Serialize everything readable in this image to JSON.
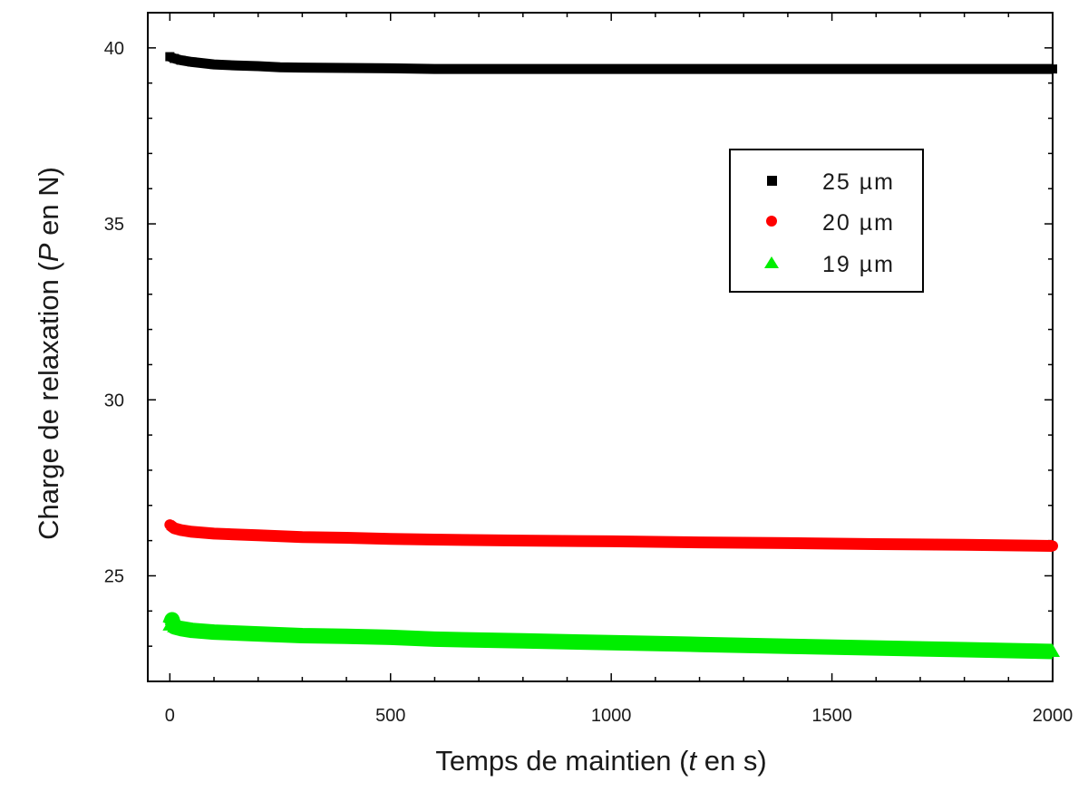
{
  "chart_data": {
    "type": "scatter",
    "xlabel": {
      "prefix": "Temps de maintien (",
      "var": "t",
      "suffix": " en s)"
    },
    "ylabel": {
      "prefix": "Charge de relaxation (",
      "var": "P",
      "suffix": " en N)"
    },
    "xlim": [
      -50,
      2000
    ],
    "ylim": [
      22,
      41
    ],
    "x_ticks": [
      0,
      500,
      1000,
      1500,
      2000
    ],
    "y_ticks": [
      25,
      30,
      35,
      40
    ],
    "legend_position": "upper-right",
    "grid": false,
    "series": [
      {
        "name": "25 µm",
        "color": "#000000",
        "marker": "square",
        "x": [
          0,
          10,
          25,
          50,
          100,
          150,
          200,
          250,
          300,
          400,
          500,
          600,
          800,
          1000,
          1200,
          1400,
          1600,
          1800,
          2000
        ],
        "y": [
          39.75,
          39.7,
          39.65,
          39.6,
          39.53,
          39.5,
          39.48,
          39.45,
          39.44,
          39.43,
          39.42,
          39.4,
          39.4,
          39.4,
          39.4,
          39.4,
          39.4,
          39.4,
          39.4
        ]
      },
      {
        "name": "20 µm",
        "color": "#ff0000",
        "marker": "circle",
        "x": [
          0,
          10,
          25,
          50,
          100,
          200,
          300,
          400,
          500,
          600,
          800,
          1000,
          1200,
          1400,
          1600,
          1800,
          2000
        ],
        "y": [
          26.45,
          26.35,
          26.3,
          26.25,
          26.2,
          26.15,
          26.1,
          26.08,
          26.05,
          26.03,
          26.0,
          25.98,
          25.95,
          25.93,
          25.9,
          25.88,
          25.85
        ]
      },
      {
        "name": "19 µm",
        "color": "#00ee00",
        "marker": "triangle",
        "x": [
          0,
          5,
          10,
          25,
          50,
          100,
          200,
          300,
          400,
          500,
          600,
          800,
          1000,
          1200,
          1400,
          1600,
          1800,
          2000
        ],
        "y": [
          23.6,
          23.75,
          23.55,
          23.5,
          23.45,
          23.4,
          23.35,
          23.3,
          23.28,
          23.25,
          23.2,
          23.15,
          23.1,
          23.05,
          23.0,
          22.95,
          22.9,
          22.85
        ]
      }
    ]
  }
}
